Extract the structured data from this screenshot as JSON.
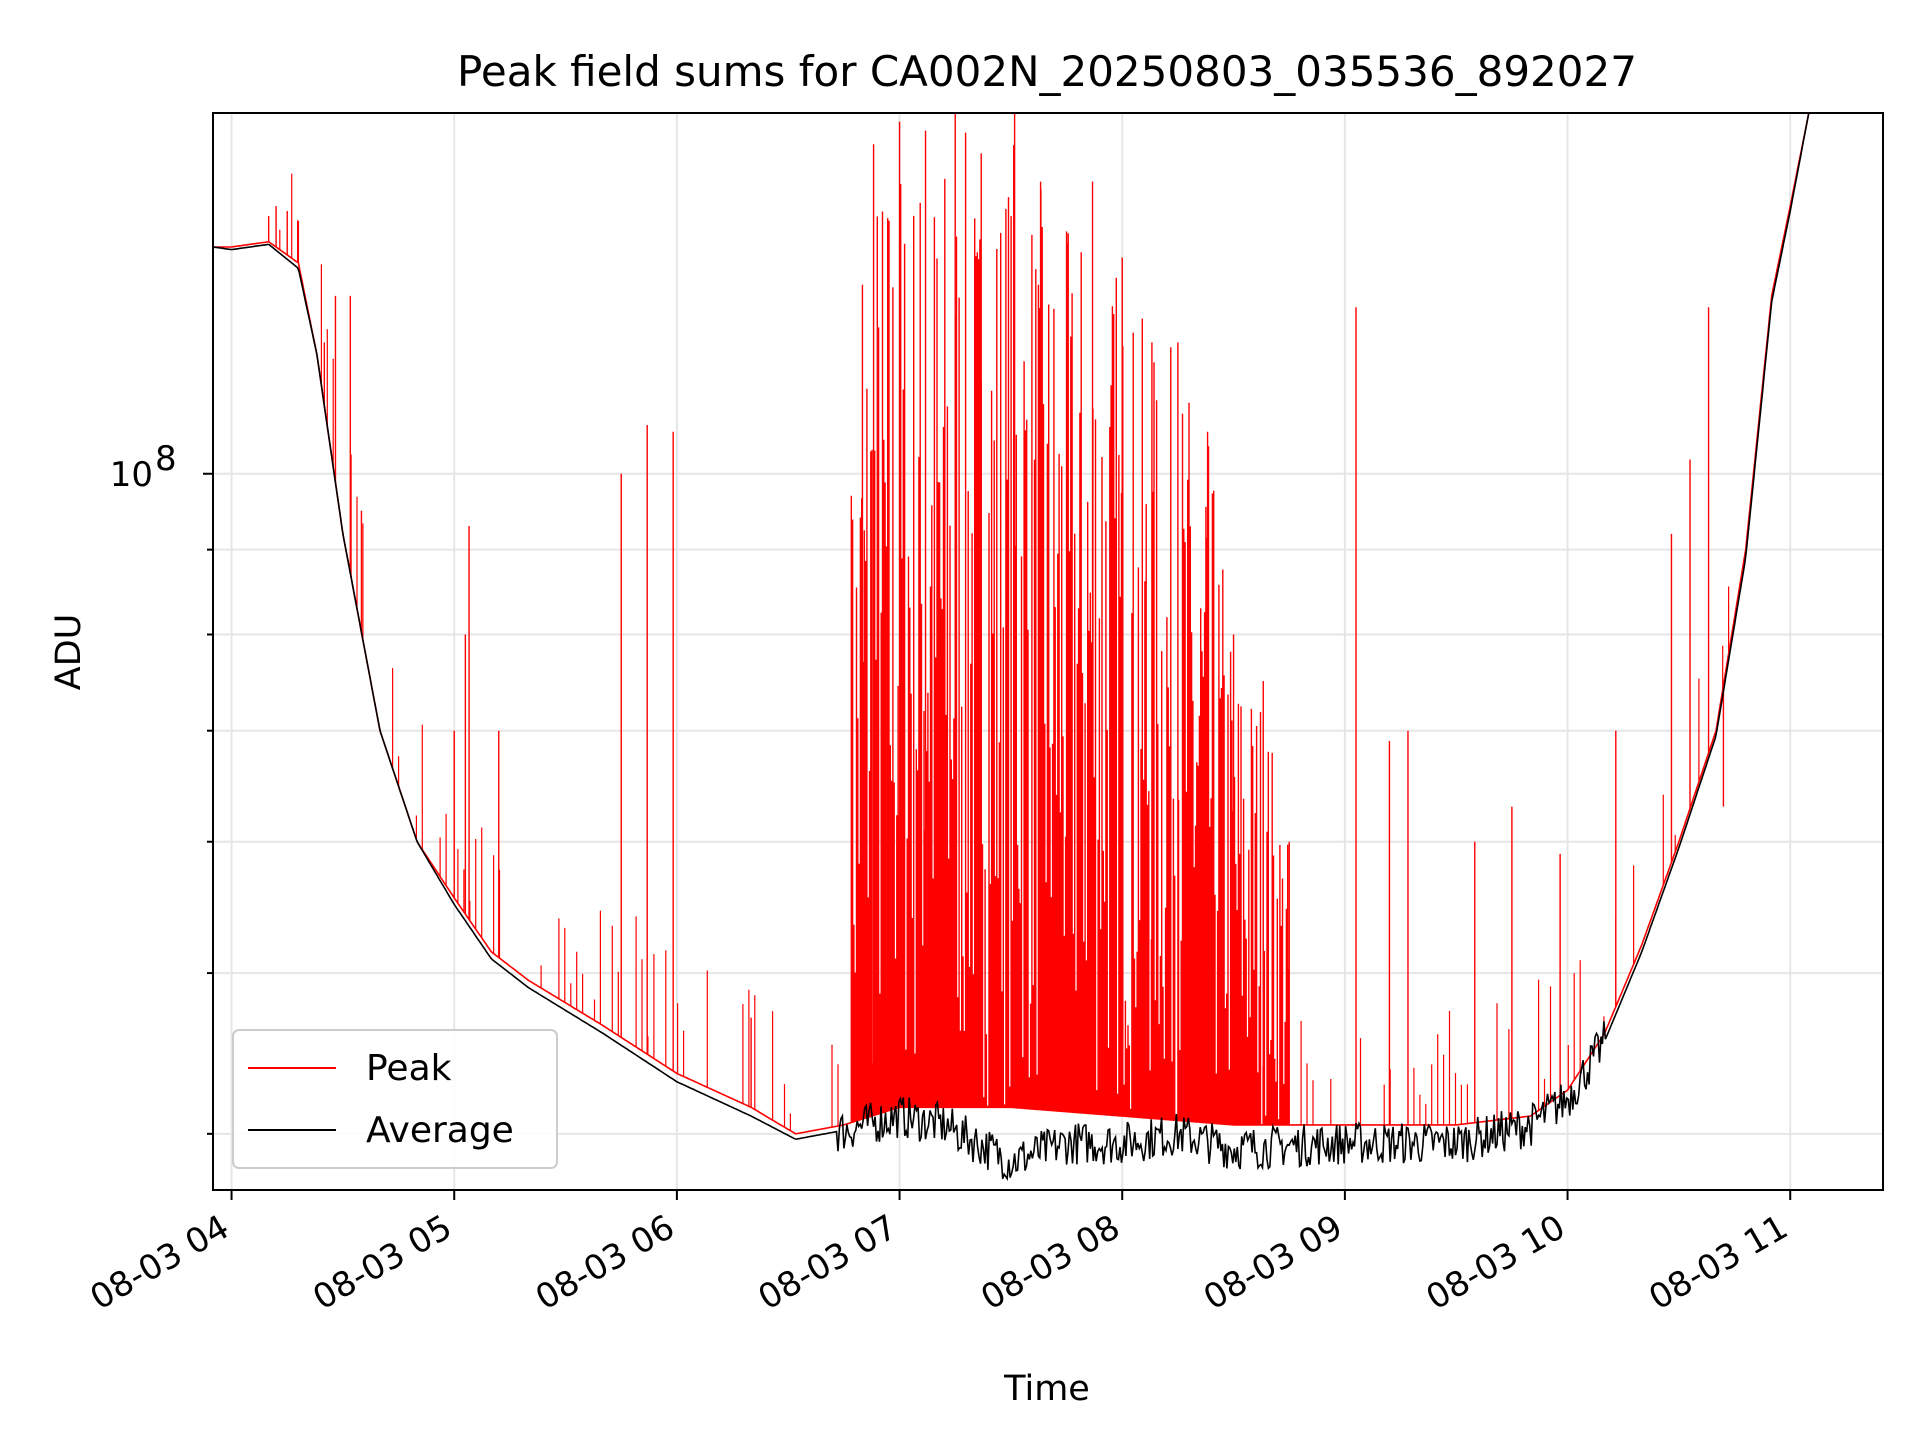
{
  "chart_data": {
    "type": "line",
    "title": "Peak field sums for CA002N_20250803_035536_892027",
    "xlabel": "Time",
    "ylabel": "ADU",
    "y_scale": "log",
    "ylim": [
      37000000,
      165000000
    ],
    "xlim": [
      "2025-08-03 03:55",
      "2025-08-03 11:25"
    ],
    "x_ticks": [
      "08-03 04",
      "08-03 05",
      "08-03 06",
      "08-03 07",
      "08-03 08",
      "08-03 09",
      "08-03 10",
      "08-03 11"
    ],
    "y_ticks": [
      {
        "value": 100000000,
        "label": "10",
        "exp": "8"
      }
    ],
    "grid": true,
    "legend_position": "lower-left",
    "series": [
      {
        "name": "Peak",
        "color": "#ff0000",
        "baseline": [
          [
            "2025-08-03 03:55",
            137000000
          ],
          [
            "2025-08-03 04:00",
            137000000
          ],
          [
            "2025-08-03 04:10",
            138000000
          ],
          [
            "2025-08-03 04:18",
            134000000
          ],
          [
            "2025-08-03 04:23",
            118000000
          ],
          [
            "2025-08-03 04:30",
            92000000
          ],
          [
            "2025-08-03 04:40",
            70000000
          ],
          [
            "2025-08-03 04:50",
            60000000
          ],
          [
            "2025-08-03 05:00",
            55500000
          ],
          [
            "2025-08-03 05:10",
            51500000
          ],
          [
            "2025-08-03 05:20",
            49500000
          ],
          [
            "2025-08-03 05:40",
            46500000
          ],
          [
            "2025-08-03 06:00",
            43500000
          ],
          [
            "2025-08-03 06:20",
            41500000
          ],
          [
            "2025-08-03 06:32",
            40000000
          ],
          [
            "2025-08-03 06:45",
            40500000
          ],
          [
            "2025-08-03 07:00",
            41500000
          ],
          [
            "2025-08-03 07:30",
            41500000
          ],
          [
            "2025-08-03 08:00",
            41000000
          ],
          [
            "2025-08-03 08:30",
            40500000
          ],
          [
            "2025-08-03 09:00",
            40500000
          ],
          [
            "2025-08-03 09:30",
            40500000
          ],
          [
            "2025-08-03 09:50",
            41000000
          ],
          [
            "2025-08-03 10:00",
            42500000
          ],
          [
            "2025-08-03 10:10",
            46000000
          ],
          [
            "2025-08-03 10:20",
            52000000
          ],
          [
            "2025-08-03 10:30",
            60000000
          ],
          [
            "2025-08-03 10:40",
            70000000
          ],
          [
            "2025-08-03 10:48",
            90000000
          ],
          [
            "2025-08-03 10:55",
            128000000
          ],
          [
            "2025-08-03 11:00",
            145000000
          ],
          [
            "2025-08-03 11:05",
            165000000
          ]
        ],
        "spikes": [
          [
            "2025-08-03 04:10",
            143000000
          ],
          [
            "2025-08-03 04:12",
            145000000
          ],
          [
            "2025-08-03 04:15",
            144000000
          ],
          [
            "2025-08-03 04:18",
            142000000
          ],
          [
            "2025-08-03 04:25",
            120000000
          ],
          [
            "2025-08-03 04:28",
            128000000
          ],
          [
            "2025-08-03 04:32",
            128000000
          ],
          [
            "2025-08-03 04:35",
            95000000
          ],
          [
            "2025-08-03 05:00",
            70000000
          ],
          [
            "2025-08-03 05:03",
            80000000
          ],
          [
            "2025-08-03 05:04",
            93000000
          ],
          [
            "2025-08-03 05:12",
            70000000
          ],
          [
            "2025-08-03 05:45",
            100000000
          ],
          [
            "2025-08-03 05:52",
            107000000
          ],
          [
            "2025-08-03 05:59",
            106000000
          ],
          [
            "2025-08-03 06:20",
            47000000
          ],
          [
            "2025-08-03 06:47",
            97000000
          ],
          [
            "2025-08-03 06:50",
            130000000
          ],
          [
            "2025-08-03 06:53",
            158000000
          ],
          [
            "2025-08-03 07:00",
            163000000
          ],
          [
            "2025-08-03 07:07",
            161000000
          ],
          [
            "2025-08-03 07:15",
            165000000
          ],
          [
            "2025-08-03 07:22",
            156000000
          ],
          [
            "2025-08-03 07:31",
            165000000
          ],
          [
            "2025-08-03 07:38",
            150000000
          ],
          [
            "2025-08-03 07:45",
            140000000
          ],
          [
            "2025-08-03 07:52",
            150000000
          ],
          [
            "2025-08-03 08:00",
            135000000
          ],
          [
            "2025-08-03 08:08",
            120000000
          ],
          [
            "2025-08-03 08:15",
            120000000
          ],
          [
            "2025-08-03 08:23",
            106000000
          ],
          [
            "2025-08-03 08:30",
            80000000
          ],
          [
            "2025-08-03 08:38",
            75000000
          ],
          [
            "2025-08-03 08:45",
            60000000
          ],
          [
            "2025-08-03 09:03",
            126000000
          ],
          [
            "2025-08-03 09:12",
            69000000
          ],
          [
            "2025-08-03 09:17",
            70000000
          ],
          [
            "2025-08-03 09:35",
            60000000
          ],
          [
            "2025-08-03 09:45",
            63000000
          ],
          [
            "2025-08-03 09:58",
            59000000
          ],
          [
            "2025-08-03 10:13",
            70000000
          ],
          [
            "2025-08-03 10:28",
            92000000
          ],
          [
            "2025-08-03 10:33",
            102000000
          ],
          [
            "2025-08-03 10:38",
            126000000
          ],
          [
            "2025-08-03 10:42",
            63000000
          ]
        ]
      },
      {
        "name": "Average",
        "color": "#000000",
        "baseline": [
          [
            "2025-08-03 03:55",
            137000000
          ],
          [
            "2025-08-03 04:00",
            136500000
          ],
          [
            "2025-08-03 04:10",
            137500000
          ],
          [
            "2025-08-03 04:18",
            133000000
          ],
          [
            "2025-08-03 04:23",
            118000000
          ],
          [
            "2025-08-03 04:30",
            92000000
          ],
          [
            "2025-08-03 04:40",
            70000000
          ],
          [
            "2025-08-03 04:50",
            60000000
          ],
          [
            "2025-08-03 05:00",
            55000000
          ],
          [
            "2025-08-03 05:10",
            51000000
          ],
          [
            "2025-08-03 05:20",
            49000000
          ],
          [
            "2025-08-03 05:40",
            46000000
          ],
          [
            "2025-08-03 06:00",
            43000000
          ],
          [
            "2025-08-03 06:20",
            41000000
          ],
          [
            "2025-08-03 06:32",
            39700000
          ],
          [
            "2025-08-03 06:45",
            40200000
          ],
          [
            "2025-08-03 07:00",
            41000000
          ],
          [
            "2025-08-03 07:12",
            40500000
          ],
          [
            "2025-08-03 07:30",
            38500000
          ],
          [
            "2025-08-03 07:45",
            39500000
          ],
          [
            "2025-08-03 08:00",
            39500000
          ],
          [
            "2025-08-03 08:15",
            40000000
          ],
          [
            "2025-08-03 08:30",
            39200000
          ],
          [
            "2025-08-03 09:00",
            39500000
          ],
          [
            "2025-08-03 09:30",
            39500000
          ],
          [
            "2025-08-03 09:50",
            40500000
          ],
          [
            "2025-08-03 10:00",
            42000000
          ],
          [
            "2025-08-03 10:10",
            45500000
          ],
          [
            "2025-08-03 10:20",
            51500000
          ],
          [
            "2025-08-03 10:30",
            59500000
          ],
          [
            "2025-08-03 10:40",
            69500000
          ],
          [
            "2025-08-03 10:48",
            89000000
          ],
          [
            "2025-08-03 10:55",
            127000000
          ],
          [
            "2025-08-03 11:00",
            144000000
          ],
          [
            "2025-08-03 11:05",
            165000000
          ]
        ]
      }
    ]
  }
}
